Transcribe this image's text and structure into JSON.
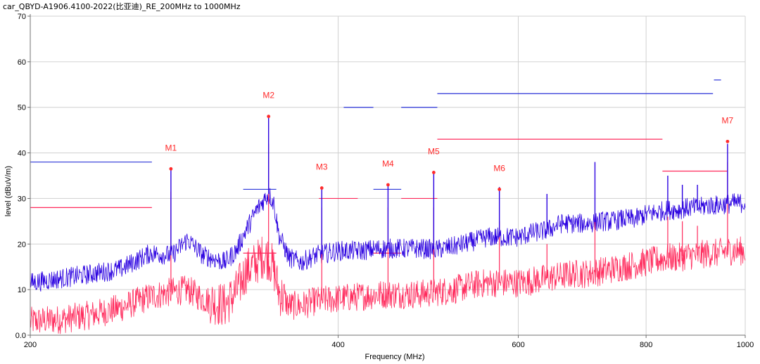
{
  "chart_data": {
    "type": "line",
    "title": "car_QBYD-A1906.4100-2022(比亚迪)_RE_200MHz to 1000MHz",
    "xlabel": "Frequency (MHz)",
    "ylabel": "level (dBuV/m)",
    "xlim": [
      200,
      1000
    ],
    "ylim": [
      0,
      70
    ],
    "x_scale": "log",
    "grid": true,
    "x_ticks": [
      200,
      400,
      600,
      800,
      1000
    ],
    "x_tick_labels": [
      "200",
      "400",
      "600",
      "800",
      "1000"
    ],
    "y_ticks": [
      0,
      10,
      20,
      30,
      40,
      50,
      60,
      70
    ],
    "y_tick_labels": [
      "0.0",
      "10",
      "20",
      "30",
      "40",
      "50",
      "60",
      "70"
    ],
    "series": [
      {
        "color": "#2a00e0",
        "x": [
          200,
          215,
          230,
          245,
          262,
          275,
          285,
          295,
          310,
          318,
          325,
          333,
          338,
          342,
          346,
          350,
          358,
          368,
          380,
          400,
          420,
          440,
          460,
          480,
          500,
          520,
          540,
          560,
          580,
          600,
          620,
          640,
          660,
          680,
          700,
          720,
          740,
          760,
          780,
          800,
          820,
          840,
          860,
          880,
          900,
          920,
          940,
          960,
          980,
          1000
        ],
        "values": [
          11.5,
          12.5,
          13.5,
          14.5,
          18,
          17.5,
          21,
          17.5,
          16,
          18.5,
          23,
          27.5,
          29.5,
          31,
          29,
          22,
          17,
          16,
          17.5,
          18.5,
          18.5,
          19,
          19,
          19,
          18.8,
          19.5,
          20.5,
          21.5,
          21.5,
          21.5,
          22.5,
          23,
          24.5,
          24.5,
          24.5,
          25,
          25,
          25.5,
          25.5,
          26.5,
          27,
          27.5,
          27.5,
          28,
          28,
          28.5,
          28.5,
          28.8,
          29,
          29
        ]
      },
      {
        "color": "#ff2a5c",
        "x": [
          200,
          215,
          230,
          245,
          262,
          275,
          285,
          295,
          310,
          318,
          325,
          333,
          338,
          342,
          346,
          350,
          358,
          368,
          380,
          400,
          420,
          440,
          460,
          480,
          500,
          520,
          540,
          560,
          580,
          600,
          620,
          640,
          660,
          680,
          700,
          720,
          740,
          760,
          780,
          800,
          820,
          840,
          860,
          880,
          900,
          920,
          940,
          960,
          980,
          1000
        ],
        "values": [
          3,
          3.5,
          4.5,
          6,
          8.5,
          9.5,
          10,
          8,
          6.5,
          9.5,
          14,
          16,
          17.5,
          17,
          14.5,
          9.5,
          6.5,
          6.5,
          7.5,
          8,
          8.5,
          9,
          9,
          9,
          9.5,
          10,
          11,
          11.5,
          11.5,
          11.5,
          12,
          12.5,
          13,
          13.5,
          13.5,
          14,
          14.5,
          15,
          15.5,
          16,
          16.5,
          17,
          17,
          17.5,
          17.5,
          18,
          18,
          18.5,
          18.5,
          18.5
        ]
      }
    ],
    "spikes": [
      {
        "x": 274.5,
        "blue": 36.5,
        "red": 31.5
      },
      {
        "x": 342,
        "blue": 48,
        "red": 42
      },
      {
        "x": 385.5,
        "blue": 32.3,
        "red": 28
      },
      {
        "x": 447.5,
        "blue": 33,
        "red": 28
      },
      {
        "x": 496,
        "blue": 36,
        "red": 28
      },
      {
        "x": 575,
        "blue": 32.5,
        "red": 25
      },
      {
        "x": 640,
        "blue": 31,
        "red": 20
      },
      {
        "x": 713,
        "blue": 38,
        "red": 26
      },
      {
        "x": 840,
        "blue": 35,
        "red": 26
      },
      {
        "x": 868,
        "blue": 33,
        "red": 25
      },
      {
        "x": 898,
        "blue": 33,
        "red": 24
      },
      {
        "x": 961,
        "blue": 42,
        "red": 38
      }
    ],
    "limit_lines": [
      {
        "color": "#2b35d9",
        "segments": [
          [
            200,
            263,
            38
          ],
          [
            323,
            348,
            32
          ],
          [
            405,
            433,
            50
          ],
          [
            433,
            461,
            32
          ],
          [
            461,
            500,
            50
          ],
          [
            500,
            930,
            53
          ],
          [
            932,
            947,
            56
          ]
        ]
      },
      {
        "color": "#ff2a5c",
        "segments": [
          [
            200,
            263,
            28
          ],
          [
            323,
            348,
            18
          ],
          [
            383,
            418,
            30
          ],
          [
            433,
            461,
            18
          ],
          [
            461,
            500,
            30
          ],
          [
            500,
            830,
            43
          ],
          [
            830,
            960,
            36
          ]
        ]
      }
    ],
    "markers": [
      {
        "label": "M1",
        "x": 274.5,
        "y": 36.5
      },
      {
        "label": "M2",
        "x": 342,
        "y": 48
      },
      {
        "label": "M3",
        "x": 385.5,
        "y": 32.3
      },
      {
        "label": "M4",
        "x": 447.5,
        "y": 33
      },
      {
        "label": "M5",
        "x": 496,
        "y": 35.7
      },
      {
        "label": "M6",
        "x": 575,
        "y": 32
      },
      {
        "label": "M7",
        "x": 961,
        "y": 42.5
      }
    ],
    "colors": {
      "grid": "#d0d0d0",
      "axis": "#707070",
      "marker": "#ff2a2a"
    }
  }
}
